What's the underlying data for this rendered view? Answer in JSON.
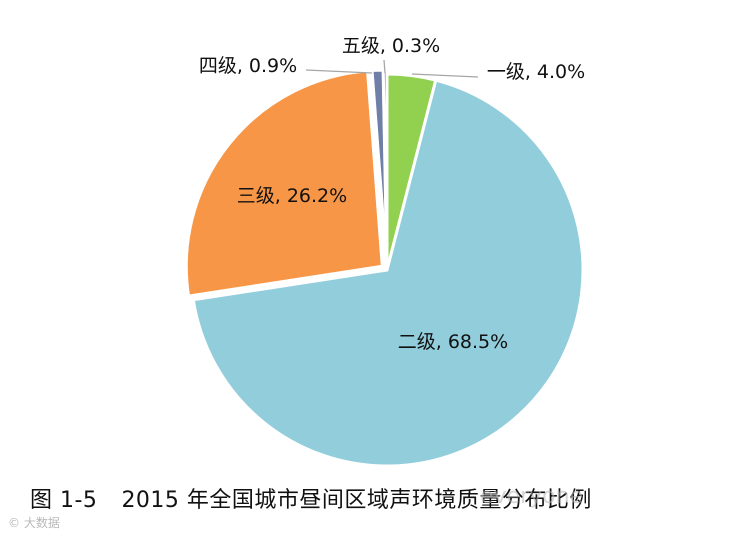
{
  "chart_data": {
    "type": "pie",
    "categories": [
      "一级",
      "二级",
      "三级",
      "四级",
      "五级"
    ],
    "values": [
      4.0,
      68.5,
      26.2,
      0.9,
      0.3
    ],
    "labels": [
      "一级, 4.0%",
      "二级, 68.5%",
      "三级, 26.2%",
      "四级, 0.9%",
      "五级, 0.3%"
    ],
    "colors": [
      "#92d050",
      "#92cddc",
      "#f79646",
      "#ffffff",
      "#8064a2"
    ],
    "slice_colors_note": "四级 slice rendered dark gray-blue",
    "start_angle_deg": 0,
    "direction": "clockwise"
  },
  "caption": {
    "number": "图 1-5",
    "text": "2015 年全国城市昼间区域声环境质量分布比例"
  },
  "watermark": {
    "left": "© 大数据",
    "right": "everyone"
  }
}
